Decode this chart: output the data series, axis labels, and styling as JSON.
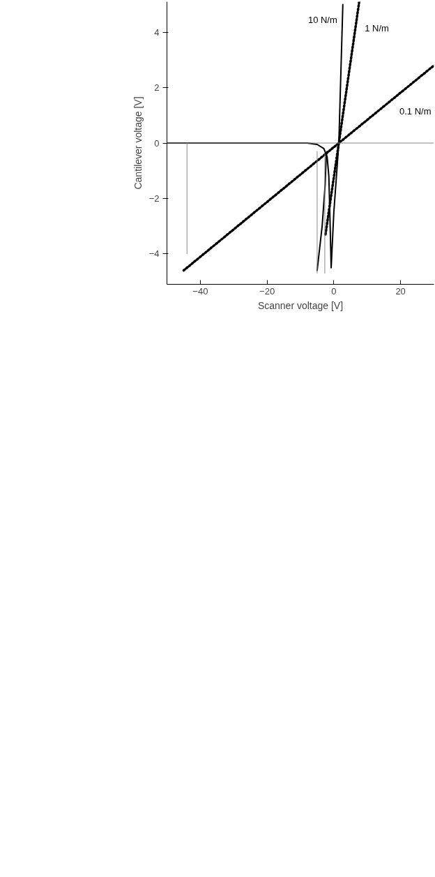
{
  "chart_data": {
    "type": "line",
    "xlabel": "Scanner voltage [V]",
    "ylabel": "Cantilever voltage [V]",
    "xlim": [
      -50,
      30
    ],
    "ylim": [
      -5.1,
      5.1
    ],
    "xticks": [
      -40,
      -20,
      0,
      20
    ],
    "yticks": [
      -4,
      -2,
      0,
      2,
      4
    ],
    "grid": false,
    "series": [
      {
        "name": "10 N/m",
        "color": "#000000",
        "line_style": "solid",
        "x": [
          -50,
          -20,
          -8,
          -5,
          -3,
          -2,
          -1.5,
          -1.2,
          -0.8,
          0,
          1.5,
          2.7
        ],
        "values": [
          0,
          0,
          0,
          -0.05,
          -0.2,
          -0.5,
          -1.2,
          -2.5,
          -4.5,
          -2.5,
          0,
          5
        ]
      },
      {
        "name": "1 N/m",
        "color": "#000000",
        "line_style": "dotted",
        "x": [
          -2.5,
          1.5,
          7.6
        ],
        "values": [
          -3.3,
          0,
          5.1
        ]
      },
      {
        "name": "0.1 N/m",
        "color": "#000000",
        "line_style": "dotted",
        "x": [
          -45,
          1.5,
          30
        ],
        "values": [
          -4.6,
          0,
          2.8
        ]
      },
      {
        "color": "#000000",
        "line_style": "solid",
        "x": [
          -5,
          -3.5,
          -2.6,
          -2.3,
          -2
        ],
        "values": [
          -4.6,
          -3,
          -1.5,
          -0.5,
          -0.3
        ]
      },
      {
        "color": "#888888",
        "line_style": "solid",
        "x": [
          -44,
          -44
        ],
        "values": [
          -4,
          0
        ]
      },
      {
        "color": "#888888",
        "line_style": "solid",
        "x": [
          -5,
          -5
        ],
        "values": [
          -4.7,
          -0.3
        ]
      },
      {
        "color": "#888888",
        "line_style": "solid",
        "x": [
          -2.7,
          -2.7
        ],
        "values": [
          -4.7,
          -0.4
        ]
      }
    ],
    "ref_lines": [
      {
        "axis": "y",
        "value": 0,
        "color": "#888888"
      }
    ]
  }
}
